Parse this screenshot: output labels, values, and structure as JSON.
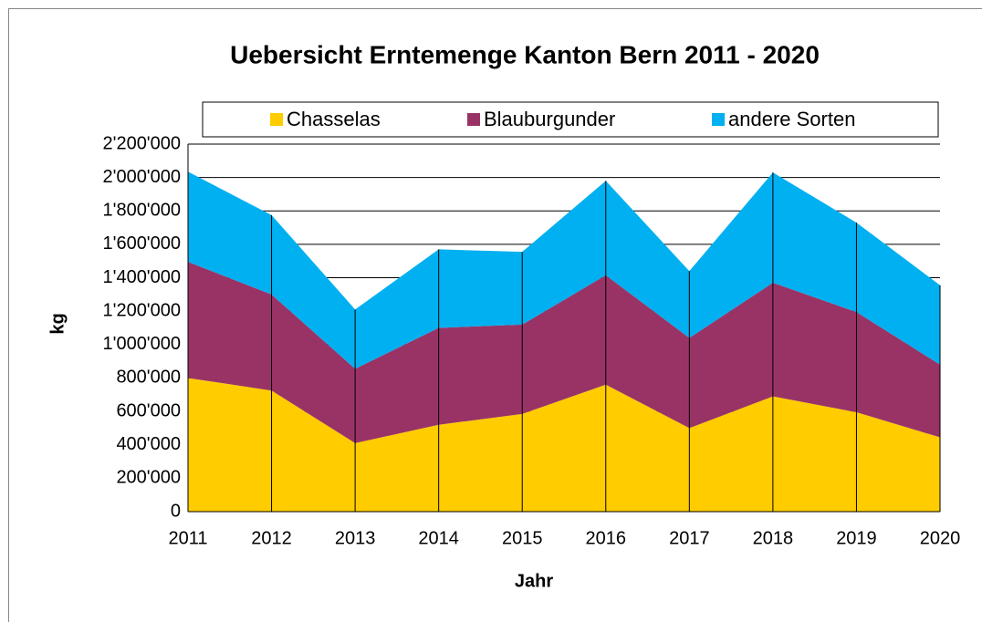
{
  "chart_data": {
    "type": "stacked_area",
    "title": "Uebersicht Erntemenge Kanton Bern 2011 - 2020",
    "x_label": "Jahr",
    "y_label": "kg",
    "categories": [
      "2011",
      "2012",
      "2013",
      "2014",
      "2015",
      "2016",
      "2017",
      "2018",
      "2019",
      "2020"
    ],
    "series": [
      {
        "name": "Chasselas",
        "color": "#ffcc00",
        "values": [
          800000,
          725000,
          410000,
          520000,
          585000,
          760000,
          500000,
          690000,
          595000,
          445000
        ]
      },
      {
        "name": "Blauburgunder",
        "color": "#993366",
        "values": [
          695000,
          575000,
          445000,
          580000,
          535000,
          655000,
          540000,
          680000,
          600000,
          435000
        ]
      },
      {
        "name": "andere Sorten",
        "color": "#00b0f0",
        "values": [
          540000,
          475000,
          355000,
          470000,
          435000,
          565000,
          400000,
          660000,
          535000,
          475000
        ]
      }
    ],
    "ylim": [
      0,
      2200000
    ],
    "yticks": [
      0,
      {
        "value": 200000,
        "label": "200'000"
      },
      {
        "value": 400000,
        "label": "400'000"
      },
      {
        "value": 600000,
        "label": "600'000"
      },
      {
        "value": 800000,
        "label": "800'000"
      },
      {
        "value": 1000000,
        "label": "1'000'000"
      },
      {
        "value": 1200000,
        "label": "1'200'000"
      },
      {
        "value": 1400000,
        "label": "1'400'000"
      },
      {
        "value": 1600000,
        "label": "1'600'000"
      },
      {
        "value": 1800000,
        "label": "1'800'000"
      },
      {
        "value": 2000000,
        "label": "2'000'000"
      },
      {
        "value": 2200000,
        "label": "2'200'000"
      }
    ],
    "grid": true,
    "legend": "top"
  }
}
